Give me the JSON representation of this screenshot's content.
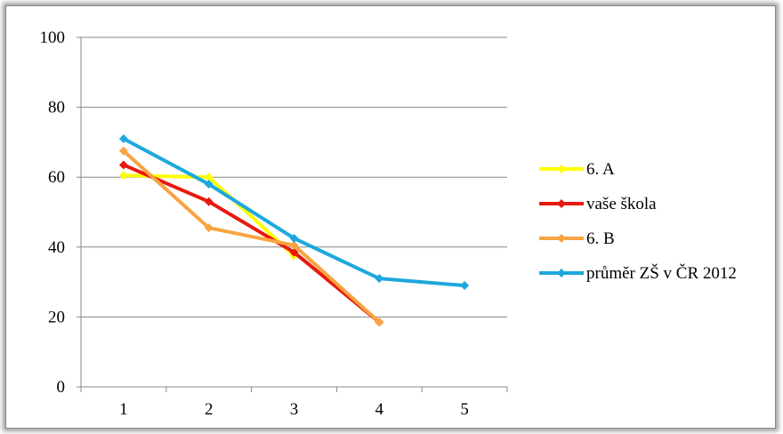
{
  "chart_data": {
    "type": "line",
    "title": "",
    "xlabel": "",
    "ylabel": "",
    "x": [
      1,
      2,
      3,
      4,
      5
    ],
    "categories": [
      "1",
      "2",
      "3",
      "4",
      "5"
    ],
    "y_ticks": [
      "0",
      "20",
      "40",
      "60",
      "80",
      "100"
    ],
    "ylim": [
      0,
      100
    ],
    "grid": "horizontal",
    "legend_position": "right",
    "series": [
      {
        "name": "6. A",
        "color": "#ffff00",
        "values": [
          60.5,
          60,
          37.5,
          null,
          null
        ]
      },
      {
        "name": "vaše škola",
        "color": "#e8190e",
        "values": [
          63.5,
          53,
          38.5,
          18.5,
          null
        ]
      },
      {
        "name": "6. B",
        "color": "#f8a442",
        "values": [
          67.5,
          45.5,
          40.5,
          18.5,
          null
        ]
      },
      {
        "name": "průměr ZŠ v ČR 2012",
        "color": "#1ca8dc",
        "values": [
          71,
          58,
          42.5,
          31,
          29
        ]
      }
    ]
  }
}
